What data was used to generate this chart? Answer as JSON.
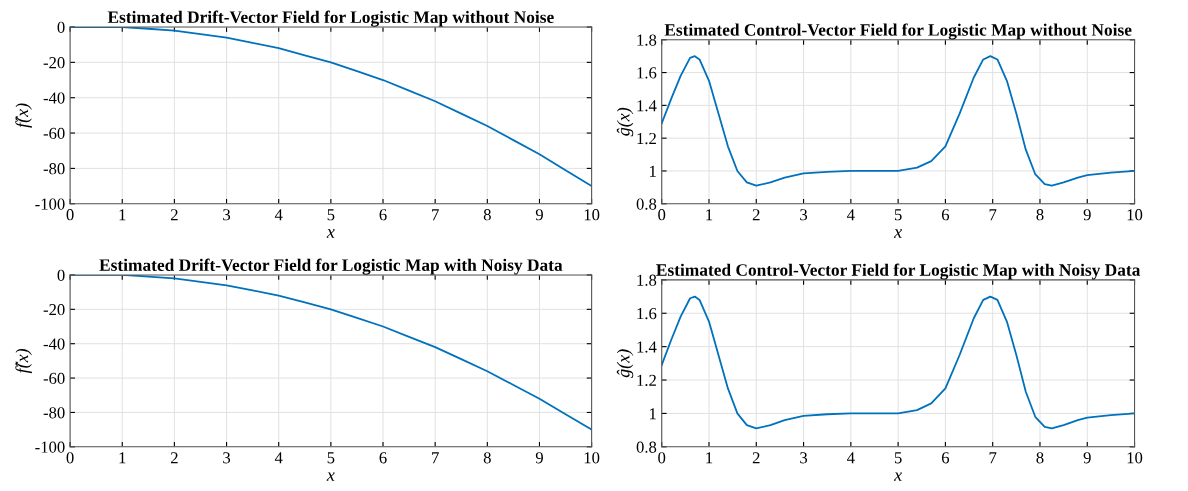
{
  "chart_data": [
    {
      "type": "line",
      "title": "Estimated Drift-Vector Field for Logistic Map without Noise",
      "xlabel": "x",
      "ylabel": "f̂(x)",
      "x": [
        0,
        0.5,
        1,
        1.5,
        2,
        2.5,
        3,
        3.5,
        4,
        4.5,
        5,
        5.5,
        6,
        6.5,
        7,
        7.5,
        8,
        8.5,
        9,
        9.5,
        10
      ],
      "series": [
        {
          "color": "#0072bd",
          "values": [
            0,
            0,
            0,
            -1,
            -2,
            -4,
            -6,
            -9,
            -12,
            -16,
            -20,
            -25,
            -30,
            -36,
            -42,
            -49,
            -56,
            -64,
            -72,
            -81,
            -90
          ]
        }
      ],
      "xlim": [
        0,
        10
      ],
      "xticks": [
        0,
        1,
        2,
        3,
        4,
        5,
        6,
        7,
        8,
        9,
        10
      ],
      "ylim": [
        -100,
        0
      ],
      "yticks": [
        -100,
        -80,
        -60,
        -40,
        -20,
        0
      ],
      "grid": true
    },
    {
      "type": "line",
      "title": "Estimated Control-Vector Field for Logistic Map without Noise",
      "xlabel": "x",
      "ylabel": "ĝ(x)",
      "x": [
        0,
        0.2,
        0.4,
        0.6,
        0.7,
        0.8,
        1.0,
        1.2,
        1.4,
        1.6,
        1.8,
        2.0,
        2.3,
        2.6,
        3.0,
        3.5,
        4,
        5,
        5.4,
        5.7,
        6.0,
        6.3,
        6.6,
        6.8,
        6.95,
        7.1,
        7.3,
        7.5,
        7.7,
        7.9,
        8.1,
        8.25,
        8.5,
        8.8,
        9.0,
        9.5,
        10
      ],
      "series": [
        {
          "color": "#0072bd",
          "values": [
            1.29,
            1.44,
            1.58,
            1.69,
            1.7,
            1.68,
            1.55,
            1.35,
            1.15,
            1.0,
            0.93,
            0.91,
            0.93,
            0.96,
            0.985,
            0.995,
            1.0,
            1.0,
            1.02,
            1.06,
            1.15,
            1.35,
            1.57,
            1.68,
            1.7,
            1.68,
            1.55,
            1.35,
            1.13,
            0.98,
            0.92,
            0.91,
            0.93,
            0.96,
            0.975,
            0.99,
            1.0
          ]
        }
      ],
      "xlim": [
        0,
        10
      ],
      "xticks": [
        0,
        1,
        2,
        3,
        4,
        5,
        6,
        7,
        8,
        9,
        10
      ],
      "ylim": [
        0.8,
        1.8
      ],
      "yticks": [
        {
          "value": 0.8,
          "label": "0.8"
        },
        {
          "value": 1,
          "label": "1"
        },
        {
          "value": 1.2,
          "label": "1.2"
        },
        {
          "value": 1.4,
          "label": "1.4"
        },
        {
          "value": 1.6,
          "label": "1.6"
        },
        {
          "value": 1.8,
          "label": "1.8"
        }
      ],
      "grid": true
    },
    {
      "type": "line",
      "title": "Estimated Drift-Vector Field for Logistic Map with Noisy Data",
      "xlabel": "x",
      "ylabel": "f̂(x)",
      "x": [
        0,
        0.5,
        1,
        1.5,
        2,
        2.5,
        3,
        3.5,
        4,
        4.5,
        5,
        5.5,
        6,
        6.5,
        7,
        7.5,
        8,
        8.5,
        9,
        9.5,
        10
      ],
      "series": [
        {
          "color": "#0072bd",
          "values": [
            0,
            0,
            0,
            -1,
            -2,
            -4,
            -6,
            -9,
            -12,
            -16,
            -20,
            -25,
            -30,
            -36,
            -42,
            -49,
            -56,
            -64,
            -72,
            -81,
            -90
          ]
        }
      ],
      "xlim": [
        0,
        10
      ],
      "xticks": [
        0,
        1,
        2,
        3,
        4,
        5,
        6,
        7,
        8,
        9,
        10
      ],
      "ylim": [
        -100,
        0
      ],
      "yticks": [
        -100,
        -80,
        -60,
        -40,
        -20,
        0
      ],
      "grid": true
    },
    {
      "type": "line",
      "title": "Estimated Control-Vector Field for Logistic Map with Noisy Data",
      "xlabel": "x",
      "ylabel": "ĝ(x)",
      "x": [
        0,
        0.2,
        0.4,
        0.6,
        0.7,
        0.8,
        1.0,
        1.2,
        1.4,
        1.6,
        1.8,
        2.0,
        2.3,
        2.6,
        3.0,
        3.5,
        4,
        5,
        5.4,
        5.7,
        6.0,
        6.3,
        6.6,
        6.8,
        6.95,
        7.1,
        7.3,
        7.5,
        7.7,
        7.9,
        8.1,
        8.25,
        8.5,
        8.8,
        9.0,
        9.5,
        10
      ],
      "series": [
        {
          "color": "#0072bd",
          "values": [
            1.29,
            1.44,
            1.58,
            1.69,
            1.7,
            1.68,
            1.55,
            1.35,
            1.15,
            1.0,
            0.93,
            0.91,
            0.93,
            0.96,
            0.985,
            0.995,
            1.0,
            1.0,
            1.02,
            1.06,
            1.15,
            1.35,
            1.57,
            1.68,
            1.7,
            1.68,
            1.55,
            1.35,
            1.13,
            0.98,
            0.92,
            0.91,
            0.93,
            0.96,
            0.975,
            0.99,
            1.0
          ]
        }
      ],
      "xlim": [
        0,
        10
      ],
      "xticks": [
        0,
        1,
        2,
        3,
        4,
        5,
        6,
        7,
        8,
        9,
        10
      ],
      "ylim": [
        0.8,
        1.8
      ],
      "yticks": [
        {
          "value": 0.8,
          "label": "0.8"
        },
        {
          "value": 1,
          "label": "1"
        },
        {
          "value": 1.2,
          "label": "1.2"
        },
        {
          "value": 1.4,
          "label": "1.4"
        },
        {
          "value": 1.6,
          "label": "1.6"
        },
        {
          "value": 1.8,
          "label": "1.8"
        }
      ],
      "grid": true
    }
  ]
}
